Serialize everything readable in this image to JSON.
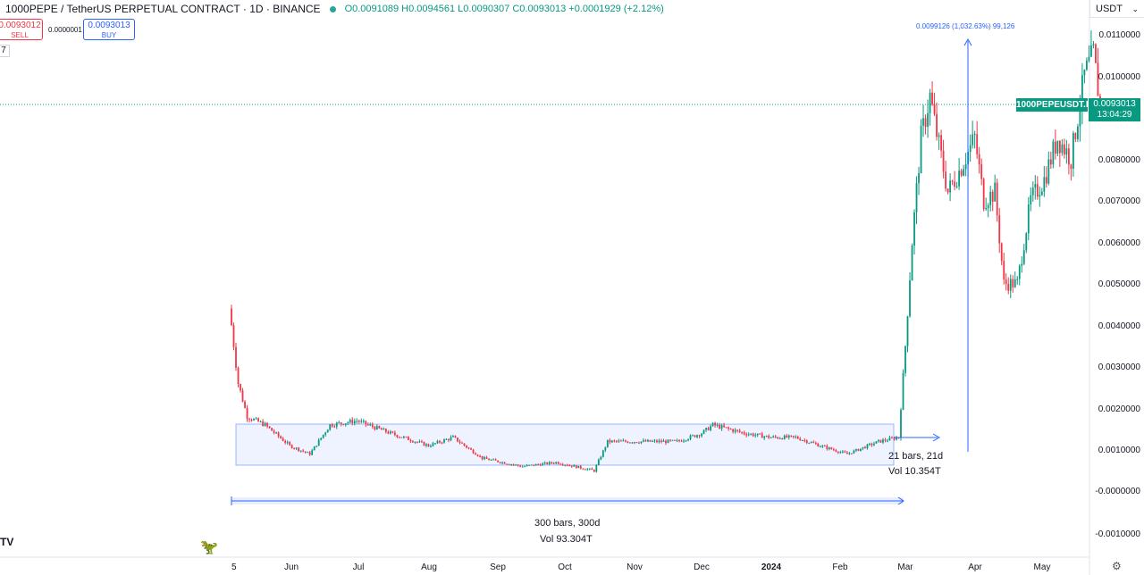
{
  "header": {
    "symbol_line": "1000PEPE / TetherUS PERPETUAL CONTRACT · 1D · BINANCE",
    "ohlc_line": "O0.0091089 H0.0094561 L0.0090307 C0.0093013 +0.0001929 (+2.12%)"
  },
  "trade": {
    "sell_price": "0.0093012",
    "sell_label": "SELL",
    "spread": "0.0000001",
    "buy_price": "0.0093013",
    "buy_label": "BUY"
  },
  "indicator_box": "7",
  "currency_selector": "USDT",
  "last_price": {
    "symbol_label": "1000PEPEUSDT.P",
    "price": "0.0093013",
    "countdown": "13:04:29"
  },
  "icons": {
    "logo": "tradingview-logo",
    "dino": "dino-icon",
    "settings": "gear-icon"
  },
  "colors": {
    "up": "#089981",
    "down": "#f23645",
    "tool": "#2962ff"
  },
  "chart_data": {
    "type": "candlestick",
    "title": "",
    "x_tick_labels": [
      "5",
      "Jun",
      "Jul",
      "Aug",
      "Sep",
      "Oct",
      "Nov",
      "Dec",
      "2024",
      "Feb",
      "Mar",
      "Apr",
      "May"
    ],
    "y_tick_labels": [
      "0.0110000",
      "0.0100000",
      "0.0080000",
      "0.0070000",
      "0.0060000",
      "0.0050000",
      "0.0040000",
      "0.0030000",
      "0.0020000",
      "0.0010000",
      "-0.0000000",
      "-0.0010000"
    ],
    "ylim": [
      -0.00115,
      0.0121
    ],
    "grid": false,
    "last_price": 0.0093013,
    "path_points": [
      {
        "date": "2023-05-05",
        "price": 0.004
      },
      {
        "date": "2023-05-08",
        "price": 0.0026
      },
      {
        "date": "2023-05-12",
        "price": 0.0018
      },
      {
        "date": "2023-05-20",
        "price": 0.0016
      },
      {
        "date": "2023-05-31",
        "price": 0.0011
      },
      {
        "date": "2023-06-09",
        "price": 0.0009
      },
      {
        "date": "2023-06-18",
        "price": 0.0016
      },
      {
        "date": "2023-06-30",
        "price": 0.0017
      },
      {
        "date": "2023-07-15",
        "price": 0.0014
      },
      {
        "date": "2023-08-01",
        "price": 0.0011
      },
      {
        "date": "2023-08-12",
        "price": 0.0013
      },
      {
        "date": "2023-08-25",
        "price": 0.0008
      },
      {
        "date": "2023-09-12",
        "price": 0.0006
      },
      {
        "date": "2023-09-27",
        "price": 0.0007
      },
      {
        "date": "2023-10-14",
        "price": 0.0005
      },
      {
        "date": "2023-10-20",
        "price": 0.0012
      },
      {
        "date": "2023-11-06",
        "price": 0.0012
      },
      {
        "date": "2023-11-20",
        "price": 0.0012
      },
      {
        "date": "2023-12-01",
        "price": 0.0014
      },
      {
        "date": "2023-12-06",
        "price": 0.0016
      },
      {
        "date": "2023-12-20",
        "price": 0.0014
      },
      {
        "date": "2024-01-01",
        "price": 0.0013
      },
      {
        "date": "2024-01-12",
        "price": 0.0013
      },
      {
        "date": "2024-01-23",
        "price": 0.0011
      },
      {
        "date": "2024-02-04",
        "price": 0.0009
      },
      {
        "date": "2024-02-18",
        "price": 0.0012
      },
      {
        "date": "2024-02-27",
        "price": 0.0013
      },
      {
        "date": "2024-03-01",
        "price": 0.0035
      },
      {
        "date": "2024-03-04",
        "price": 0.006
      },
      {
        "date": "2024-03-08",
        "price": 0.0085
      },
      {
        "date": "2024-03-12",
        "price": 0.0095
      },
      {
        "date": "2024-03-15",
        "price": 0.0086
      },
      {
        "date": "2024-03-20",
        "price": 0.0072
      },
      {
        "date": "2024-03-25",
        "price": 0.0077
      },
      {
        "date": "2024-04-01",
        "price": 0.0085
      },
      {
        "date": "2024-04-05",
        "price": 0.007
      },
      {
        "date": "2024-04-10",
        "price": 0.0072
      },
      {
        "date": "2024-04-14",
        "price": 0.005
      },
      {
        "date": "2024-04-20",
        "price": 0.005
      },
      {
        "date": "2024-04-26",
        "price": 0.007
      },
      {
        "date": "2024-05-02",
        "price": 0.0075
      },
      {
        "date": "2024-05-08",
        "price": 0.0085
      },
      {
        "date": "2024-05-14",
        "price": 0.008
      },
      {
        "date": "2024-05-20",
        "price": 0.01
      },
      {
        "date": "2024-05-24",
        "price": 0.0105
      },
      {
        "date": "2024-05-27",
        "price": 0.0093
      }
    ],
    "annotations": {
      "range_box": {
        "from": "2023-05-05",
        "to": "2024-02-28",
        "price_low": 0.0006,
        "price_high": 0.0016
      },
      "bars_range_label": "21 bars, 21d",
      "bars_range_volume": "Vol 10.354T",
      "long_range_label": "300 bars, 300d",
      "long_range_volume": "Vol 93.304T",
      "price_range_label": "0.0099126 (1,032.63%) 99,126"
    }
  }
}
